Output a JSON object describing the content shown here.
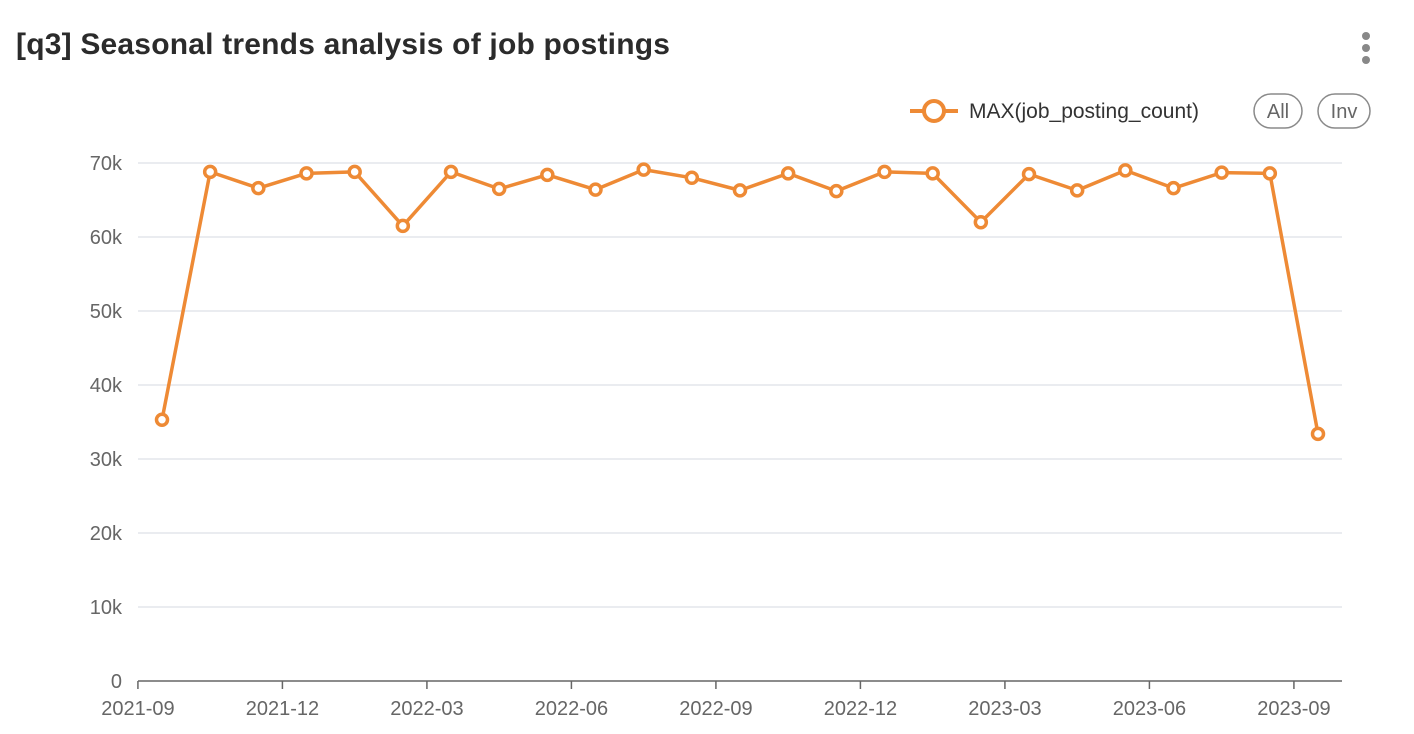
{
  "header": {
    "title": "[q3] Seasonal trends analysis of job postings",
    "menu_icon": "more-vertical-icon"
  },
  "legend": {
    "series_label": "MAX(job_posting_count)",
    "all_label": "All",
    "inv_label": "Inv"
  },
  "colors": {
    "series": "#ee8a35",
    "grid": "#e3e5ec",
    "axis": "#666666"
  },
  "chart_data": {
    "type": "line",
    "title": "[q3] Seasonal trends analysis of job postings",
    "xlabel": "",
    "ylabel": "",
    "ylim": [
      0,
      70000
    ],
    "y_ticks": [
      0,
      10000,
      20000,
      30000,
      40000,
      50000,
      60000,
      70000
    ],
    "y_tick_labels": [
      "0",
      "10k",
      "20k",
      "30k",
      "40k",
      "50k",
      "60k",
      "70k"
    ],
    "x_tick_labels": [
      "2021-09",
      "2021-12",
      "2022-03",
      "2022-06",
      "2022-09",
      "2022-12",
      "2023-03",
      "2023-06",
      "2023-09"
    ],
    "x": [
      "2021-09",
      "2021-10",
      "2021-11",
      "2021-12",
      "2022-01",
      "2022-02",
      "2022-03",
      "2022-04",
      "2022-05",
      "2022-06",
      "2022-07",
      "2022-08",
      "2022-09",
      "2022-10",
      "2022-11",
      "2022-12",
      "2023-01",
      "2023-02",
      "2023-03",
      "2023-04",
      "2023-05",
      "2023-06",
      "2023-07",
      "2023-08",
      "2023-09"
    ],
    "series": [
      {
        "name": "MAX(job_posting_count)",
        "values": [
          35300,
          68800,
          66600,
          68600,
          68800,
          61500,
          68800,
          66500,
          68400,
          66400,
          69100,
          68000,
          66300,
          68600,
          66200,
          68800,
          68600,
          62000,
          68500,
          66300,
          69000,
          66600,
          68700,
          68600,
          33400
        ]
      }
    ],
    "grid": true,
    "legend_position": "top-right"
  }
}
